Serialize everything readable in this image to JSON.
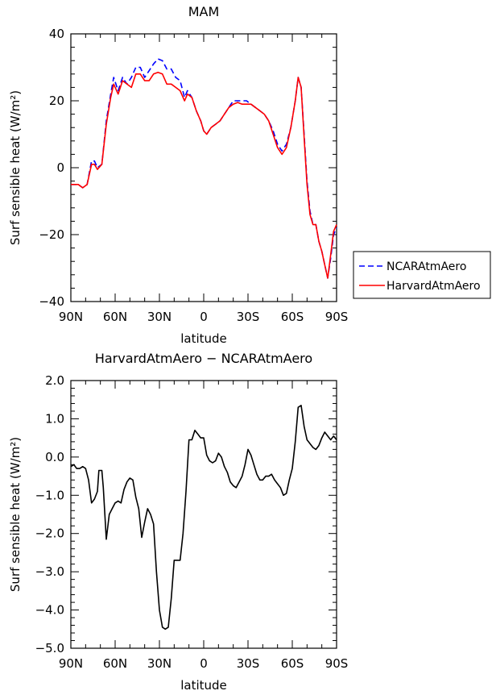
{
  "chart_data": [
    {
      "type": "line",
      "title": "MAM",
      "xlabel": "latitude",
      "ylabel": "Surf sensible heat (W/m²)",
      "xlim": [
        90,
        -90
      ],
      "ylim": [
        -40,
        40
      ],
      "x_ticks": [
        90,
        60,
        30,
        0,
        -30,
        -60,
        -90
      ],
      "x_tick_labels": [
        "90N",
        "60N",
        "30N",
        "0",
        "30S",
        "60S",
        "90S"
      ],
      "y_ticks": [
        40,
        20,
        0,
        -20,
        -40
      ],
      "y_tick_labels": [
        "40",
        "20",
        "0",
        "−20",
        "−40"
      ],
      "legend": {
        "position": "right",
        "entries": [
          "NCARAtmAero",
          "HarvardAtmAero"
        ]
      },
      "series": [
        {
          "name": "NCARAtmAero",
          "color": "#0000ff",
          "dash": "dashed",
          "points": [
            [
              90,
              -5
            ],
            [
              87,
              -5
            ],
            [
              85,
              -5
            ],
            [
              82,
              -6
            ],
            [
              79,
              -5
            ],
            [
              76,
              2
            ],
            [
              74,
              2
            ],
            [
              72,
              0
            ],
            [
              69,
              1
            ],
            [
              66,
              14
            ],
            [
              63,
              22
            ],
            [
              61,
              27
            ],
            [
              58,
              23
            ],
            [
              55,
              27
            ],
            [
              52,
              25
            ],
            [
              49,
              27
            ],
            [
              46,
              30
            ],
            [
              43,
              30
            ],
            [
              40,
              27
            ],
            [
              37,
              29
            ],
            [
              34,
              31
            ],
            [
              31,
              32.5
            ],
            [
              28,
              32
            ],
            [
              25,
              29.5
            ],
            [
              22,
              29.5
            ],
            [
              19,
              27
            ],
            [
              16,
              26
            ],
            [
              13,
              21
            ],
            [
              11,
              23
            ],
            [
              8,
              21
            ],
            [
              5,
              17
            ],
            [
              2,
              14
            ],
            [
              0,
              11
            ],
            [
              -2,
              10
            ],
            [
              -5,
              12
            ],
            [
              -8,
              13
            ],
            [
              -11,
              14
            ],
            [
              -14,
              16
            ],
            [
              -17,
              18
            ],
            [
              -20,
              20
            ],
            [
              -23,
              20
            ],
            [
              -26,
              20
            ],
            [
              -29,
              20
            ],
            [
              -32,
              19
            ],
            [
              -35,
              18
            ],
            [
              -38,
              17
            ],
            [
              -41,
              16
            ],
            [
              -44,
              14
            ],
            [
              -47,
              11
            ],
            [
              -50,
              7
            ],
            [
              -53,
              5
            ],
            [
              -56,
              7
            ],
            [
              -59,
              12
            ],
            [
              -62,
              20
            ],
            [
              -64,
              27
            ],
            [
              -66,
              24
            ],
            [
              -68,
              10
            ],
            [
              -70,
              -4
            ],
            [
              -72,
              -13
            ],
            [
              -74,
              -17
            ],
            [
              -76,
              -17
            ],
            [
              -78,
              -22
            ],
            [
              -80,
              -25
            ],
            [
              -82,
              -29
            ],
            [
              -84,
              -33
            ],
            [
              -86,
              -27
            ],
            [
              -88,
              -20
            ],
            [
              -90,
              -18
            ]
          ]
        },
        {
          "name": "HarvardAtmAero",
          "color": "#ff0000",
          "dash": "solid",
          "points": [
            [
              90,
              -5
            ],
            [
              87,
              -5
            ],
            [
              85,
              -5
            ],
            [
              82,
              -6
            ],
            [
              79,
              -5
            ],
            [
              76,
              1
            ],
            [
              74,
              1
            ],
            [
              72,
              -0.5
            ],
            [
              69,
              1
            ],
            [
              66,
              13
            ],
            [
              63,
              21
            ],
            [
              61,
              25
            ],
            [
              58,
              22
            ],
            [
              55,
              26
            ],
            [
              52,
              25
            ],
            [
              49,
              24
            ],
            [
              46,
              28
            ],
            [
              43,
              28
            ],
            [
              40,
              26
            ],
            [
              37,
              26
            ],
            [
              34,
              28
            ],
            [
              31,
              28.5
            ],
            [
              28,
              28
            ],
            [
              25,
              25
            ],
            [
              22,
              25
            ],
            [
              19,
              24
            ],
            [
              16,
              23
            ],
            [
              13,
              20
            ],
            [
              11,
              22
            ],
            [
              8,
              21
            ],
            [
              5,
              17
            ],
            [
              2,
              14
            ],
            [
              0,
              11
            ],
            [
              -2,
              10
            ],
            [
              -5,
              12
            ],
            [
              -8,
              13
            ],
            [
              -11,
              14
            ],
            [
              -14,
              16
            ],
            [
              -17,
              18
            ],
            [
              -20,
              19
            ],
            [
              -23,
              19.5
            ],
            [
              -26,
              19
            ],
            [
              -29,
              19
            ],
            [
              -32,
              19
            ],
            [
              -35,
              18
            ],
            [
              -38,
              17
            ],
            [
              -41,
              16
            ],
            [
              -44,
              14
            ],
            [
              -47,
              10
            ],
            [
              -50,
              6
            ],
            [
              -53,
              4
            ],
            [
              -56,
              6
            ],
            [
              -59,
              12
            ],
            [
              -62,
              20
            ],
            [
              -64,
              27
            ],
            [
              -66,
              24
            ],
            [
              -68,
              9
            ],
            [
              -70,
              -5
            ],
            [
              -72,
              -14
            ],
            [
              -74,
              -17
            ],
            [
              -76,
              -17
            ],
            [
              -78,
              -22
            ],
            [
              -80,
              -25
            ],
            [
              -82,
              -29
            ],
            [
              -84,
              -33
            ],
            [
              -86,
              -26
            ],
            [
              -88,
              -19
            ],
            [
              -90,
              -17
            ]
          ]
        }
      ]
    },
    {
      "type": "line",
      "title": "HarvardAtmAero − NCARAtmAero",
      "xlabel": "latitude",
      "ylabel": "Surf sensible heat (W/m²)",
      "xlim": [
        90,
        -90
      ],
      "ylim": [
        -5,
        2
      ],
      "x_ticks": [
        90,
        60,
        30,
        0,
        -30,
        -60,
        -90
      ],
      "x_tick_labels": [
        "90N",
        "60N",
        "30N",
        "0",
        "30S",
        "60S",
        "90S"
      ],
      "y_ticks": [
        2,
        1,
        0,
        -1,
        -2,
        -3,
        -4,
        -5
      ],
      "y_tick_labels": [
        "2.0",
        "1.0",
        "0.0",
        "−1.0",
        "−2.0",
        "−3.0",
        "−4.0",
        "−5.0"
      ],
      "series": [
        {
          "color": "#000000",
          "dash": "solid",
          "points": [
            [
              90,
              -0.25
            ],
            [
              88,
              -0.2
            ],
            [
              86,
              -0.3
            ],
            [
              84,
              -0.3
            ],
            [
              82,
              -0.25
            ],
            [
              80,
              -0.3
            ],
            [
              78,
              -0.6
            ],
            [
              76,
              -1.2
            ],
            [
              74,
              -1.1
            ],
            [
              72,
              -0.9
            ],
            [
              71,
              -0.35
            ],
            [
              69,
              -0.35
            ],
            [
              68,
              -0.8
            ],
            [
              66,
              -2.15
            ],
            [
              64,
              -1.5
            ],
            [
              62,
              -1.35
            ],
            [
              60,
              -1.2
            ],
            [
              58,
              -1.15
            ],
            [
              56,
              -1.2
            ],
            [
              54,
              -0.85
            ],
            [
              52,
              -0.65
            ],
            [
              50,
              -0.55
            ],
            [
              48,
              -0.6
            ],
            [
              46,
              -1.05
            ],
            [
              44,
              -1.35
            ],
            [
              42,
              -2.1
            ],
            [
              40,
              -1.7
            ],
            [
              38,
              -1.35
            ],
            [
              36,
              -1.5
            ],
            [
              34,
              -1.75
            ],
            [
              32,
              -3.0
            ],
            [
              30,
              -4.0
            ],
            [
              28,
              -4.45
            ],
            [
              26,
              -4.5
            ],
            [
              24,
              -4.45
            ],
            [
              22,
              -3.7
            ],
            [
              20,
              -2.7
            ],
            [
              18,
              -2.7
            ],
            [
              16,
              -2.7
            ],
            [
              14,
              -2.0
            ],
            [
              12,
              -0.9
            ],
            [
              10,
              0.45
            ],
            [
              8,
              0.45
            ],
            [
              6,
              0.7
            ],
            [
              4,
              0.6
            ],
            [
              2,
              0.5
            ],
            [
              0,
              0.5
            ],
            [
              -2,
              0.05
            ],
            [
              -4,
              -0.1
            ],
            [
              -6,
              -0.15
            ],
            [
              -8,
              -0.1
            ],
            [
              -10,
              0.1
            ],
            [
              -12,
              0.0
            ],
            [
              -14,
              -0.25
            ],
            [
              -16,
              -0.4
            ],
            [
              -18,
              -0.65
            ],
            [
              -20,
              -0.75
            ],
            [
              -22,
              -0.8
            ],
            [
              -24,
              -0.65
            ],
            [
              -26,
              -0.5
            ],
            [
              -28,
              -0.2
            ],
            [
              -30,
              0.2
            ],
            [
              -32,
              0.05
            ],
            [
              -34,
              -0.2
            ],
            [
              -36,
              -0.45
            ],
            [
              -38,
              -0.6
            ],
            [
              -40,
              -0.6
            ],
            [
              -42,
              -0.5
            ],
            [
              -44,
              -0.5
            ],
            [
              -46,
              -0.45
            ],
            [
              -48,
              -0.6
            ],
            [
              -50,
              -0.7
            ],
            [
              -52,
              -0.8
            ],
            [
              -54,
              -1.0
            ],
            [
              -56,
              -0.95
            ],
            [
              -58,
              -0.6
            ],
            [
              -60,
              -0.3
            ],
            [
              -62,
              0.4
            ],
            [
              -64,
              1.3
            ],
            [
              -66,
              1.35
            ],
            [
              -68,
              0.8
            ],
            [
              -70,
              0.45
            ],
            [
              -72,
              0.35
            ],
            [
              -74,
              0.25
            ],
            [
              -76,
              0.2
            ],
            [
              -78,
              0.3
            ],
            [
              -80,
              0.5
            ],
            [
              -82,
              0.65
            ],
            [
              -84,
              0.55
            ],
            [
              -86,
              0.45
            ],
            [
              -88,
              0.55
            ],
            [
              -90,
              0.45
            ]
          ]
        }
      ]
    }
  ]
}
